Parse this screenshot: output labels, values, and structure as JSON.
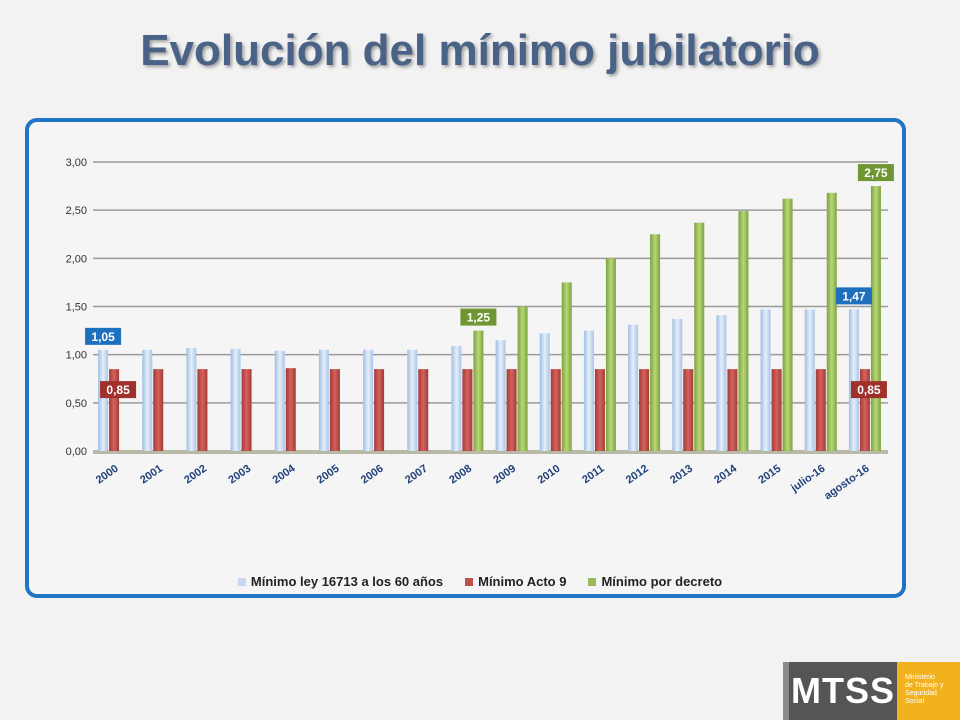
{
  "slide": {
    "title": "Evolución del mínimo jubilatorio"
  },
  "logo": {
    "mark": "MTSS",
    "lines": [
      "Ministerio",
      "de Trabajo y",
      "Seguridad",
      "Social"
    ]
  },
  "colors": {
    "series_ley": "#c6d9f1",
    "series_acto": "#c0504d",
    "series_decreto": "#9bbb59",
    "frame": "#1f74c4",
    "label_blue": "#1f6fbf",
    "label_red": "#a0302c",
    "label_green": "#6f9632"
  },
  "chart_data": {
    "type": "bar",
    "categories": [
      "2000",
      "2001",
      "2002",
      "2003",
      "2004",
      "2005",
      "2006",
      "2007",
      "2008",
      "2009",
      "2010",
      "2011",
      "2012",
      "2013",
      "2014",
      "2015",
      "julio-16",
      "agosto-16"
    ],
    "series": [
      {
        "name": "Mínimo ley 16713 a los 60 años",
        "values": [
          1.05,
          1.05,
          1.07,
          1.06,
          1.04,
          1.05,
          1.05,
          1.05,
          1.09,
          1.15,
          1.22,
          1.25,
          1.31,
          1.37,
          1.41,
          1.47,
          1.47,
          1.47
        ]
      },
      {
        "name": "Mínimo Acto 9",
        "values": [
          0.85,
          0.85,
          0.85,
          0.85,
          0.86,
          0.85,
          0.85,
          0.85,
          0.85,
          0.85,
          0.85,
          0.85,
          0.85,
          0.85,
          0.85,
          0.85,
          0.85,
          0.85
        ]
      },
      {
        "name": "Mínimo por decreto",
        "values": [
          null,
          null,
          null,
          null,
          null,
          null,
          null,
          null,
          1.25,
          1.5,
          1.75,
          2.0,
          2.25,
          2.37,
          2.49,
          2.62,
          2.68,
          2.75
        ]
      }
    ],
    "ylim": [
      0,
      3
    ],
    "yticks": [
      "0,00",
      "0,50",
      "1,00",
      "1,50",
      "2,00",
      "2,50",
      "3,00"
    ],
    "legend_position": "bottom",
    "grid": true,
    "annotations": [
      {
        "text": "1,05",
        "series": 0,
        "category": "2000",
        "color": "blue"
      },
      {
        "text": "0,85",
        "series": 1,
        "category": "2000",
        "color": "red"
      },
      {
        "text": "1,25",
        "series": 2,
        "category": "2008",
        "color": "green"
      },
      {
        "text": "2,75",
        "series": 2,
        "category": "agosto-16",
        "color": "green"
      },
      {
        "text": "1,47",
        "series": 0,
        "category": "agosto-16",
        "color": "blue"
      },
      {
        "text": "0,85",
        "series": 1,
        "category": "agosto-16",
        "color": "red"
      }
    ]
  }
}
